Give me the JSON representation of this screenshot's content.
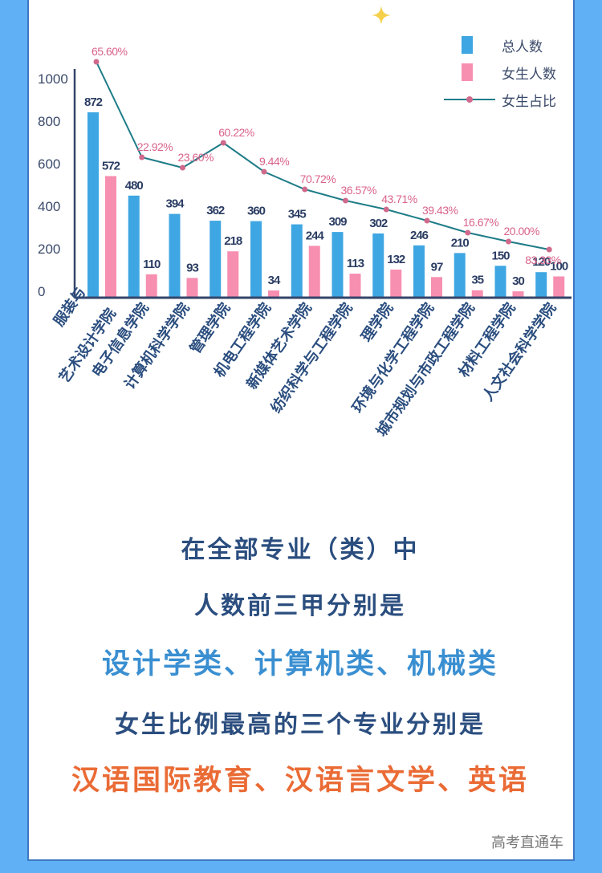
{
  "chart_data": {
    "type": "bar",
    "title": "",
    "xlabel": "",
    "ylabel": "",
    "ylim": [
      0,
      1000
    ],
    "yticks": [
      0,
      200,
      400,
      600,
      800,
      1000
    ],
    "grid": false,
    "legend_position": "top-right",
    "categories": [
      "服装与\n艺术设计学院",
      "电子信息学院",
      "计算机科学学院",
      "管理学院",
      "机电工程学院",
      "新媒体艺术学院",
      "纺织科学与工程学院",
      "理学院",
      "环境与化学工程学院",
      "城市规划与市政工程学院",
      "材料工程学院",
      "人文社会科学学院"
    ],
    "series": [
      {
        "name": "总人数",
        "type": "bar",
        "color": "#3ea6e2",
        "values": [
          872,
          480,
          394,
          362,
          360,
          345,
          309,
          302,
          246,
          210,
          150,
          120
        ]
      },
      {
        "name": "女生人数",
        "type": "bar",
        "color": "#f78fb0",
        "values": [
          572,
          110,
          93,
          218,
          34,
          244,
          113,
          132,
          97,
          35,
          30,
          100
        ]
      },
      {
        "name": "女生占比",
        "type": "line",
        "color": "#1f7d88",
        "marker_color": "#d06a8c",
        "values": [
          65.6,
          22.92,
          23.6,
          60.22,
          9.44,
          70.72,
          36.57,
          43.71,
          39.43,
          16.67,
          20.0,
          83.33
        ],
        "labels": [
          "65.60%",
          "22.92%",
          "23.60%",
          "60.22%",
          "9.44%",
          "70.72%",
          "36.57%",
          "43.71%",
          "39.43%",
          "16.67%",
          "20.00%",
          "83.33%"
        ]
      }
    ]
  },
  "legend": {
    "total": "总人数",
    "female": "女生人数",
    "ratio": "女生占比"
  },
  "colors": {
    "background": "#5fb0f5",
    "panel": "#ffffff",
    "bar_total": "#3ea6e2",
    "bar_female": "#f78fb0",
    "line": "#1f7d88",
    "ratio_label": "#d9628a",
    "value_label": "#2b3d63",
    "caption_dark": "#2b4e7f",
    "caption_blue": "#3a8fd1",
    "caption_orange": "#ea6b35"
  },
  "captions": {
    "line1": "在全部专业（类）中",
    "line2": "人数前三甲分别是",
    "line3": "设计学类、计算机类、机械类",
    "line4": "女生比例最高的三个专业分别是",
    "line5": "汉语国际教育、汉语言文学、英语"
  },
  "watermark": "高考直通车"
}
